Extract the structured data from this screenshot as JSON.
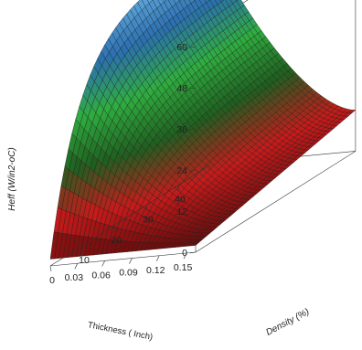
{
  "chart_data": {
    "type": "surface3d",
    "x_axis": {
      "label": "Thickness ( Inch)",
      "ticks": [
        "0.15",
        "0.12",
        "0.09",
        "0.06",
        "0.03"
      ],
      "range": [
        0,
        0.16
      ]
    },
    "y_axis": {
      "label": "Density (%)",
      "ticks": [
        "0",
        "10",
        "20",
        "30",
        "40"
      ],
      "range": [
        0,
        50
      ]
    },
    "z_axis": {
      "label": "Heff  (W/in2-oC)",
      "ticks": [
        "0",
        "12",
        "24",
        "36",
        "48",
        "60"
      ],
      "range": [
        0,
        64
      ]
    },
    "surface": {
      "description_of_shape": "Heff increases with density and decreases with thickness; maximum near thinnest panel at high density",
      "corner_values": {
        "thickness_0.16_density_0": 2,
        "thickness_0.16_density_50": 14,
        "thickness_0.0_density_0": 4,
        "thickness_0.0_density_50": 64
      }
    },
    "colormap": [
      "#5a0a0a",
      "#c81a1a",
      "#1f5f1f",
      "#2fae3f",
      "#2a6fb0",
      "#6ab4e6"
    ],
    "grid": true,
    "legend": "none"
  }
}
